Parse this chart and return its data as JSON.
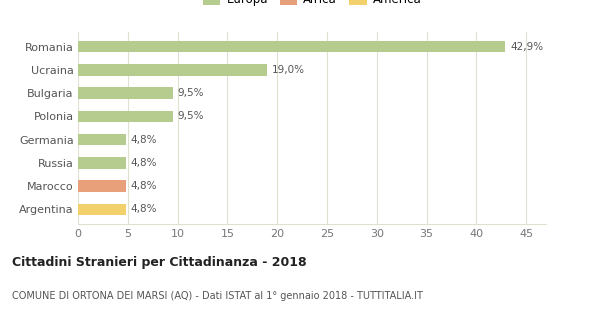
{
  "categories": [
    "Romania",
    "Ucraina",
    "Bulgaria",
    "Polonia",
    "Germania",
    "Russia",
    "Marocco",
    "Argentina"
  ],
  "values": [
    42.9,
    19.0,
    9.5,
    9.5,
    4.8,
    4.8,
    4.8,
    4.8
  ],
  "labels": [
    "42,9%",
    "19,0%",
    "9,5%",
    "9,5%",
    "4,8%",
    "4,8%",
    "4,8%",
    "4,8%"
  ],
  "colors": [
    "#b5cc8e",
    "#b5cc8e",
    "#b5cc8e",
    "#b5cc8e",
    "#b5cc8e",
    "#b5cc8e",
    "#e8a07a",
    "#f2d06b"
  ],
  "legend": [
    {
      "label": "Europa",
      "color": "#b5cc8e"
    },
    {
      "label": "Africa",
      "color": "#e8a07a"
    },
    {
      "label": "America",
      "color": "#f2d06b"
    }
  ],
  "xlim": [
    0,
    47
  ],
  "xticks": [
    0,
    5,
    10,
    15,
    20,
    25,
    30,
    35,
    40,
    45
  ],
  "title_bold": "Cittadini Stranieri per Cittadinanza - 2018",
  "subtitle": "COMUNE DI ORTONA DEI MARSI (AQ) - Dati ISTAT al 1° gennaio 2018 - TUTTITALIA.IT",
  "background_color": "#ffffff",
  "grid_color": "#e0e0d0",
  "bar_height": 0.5
}
